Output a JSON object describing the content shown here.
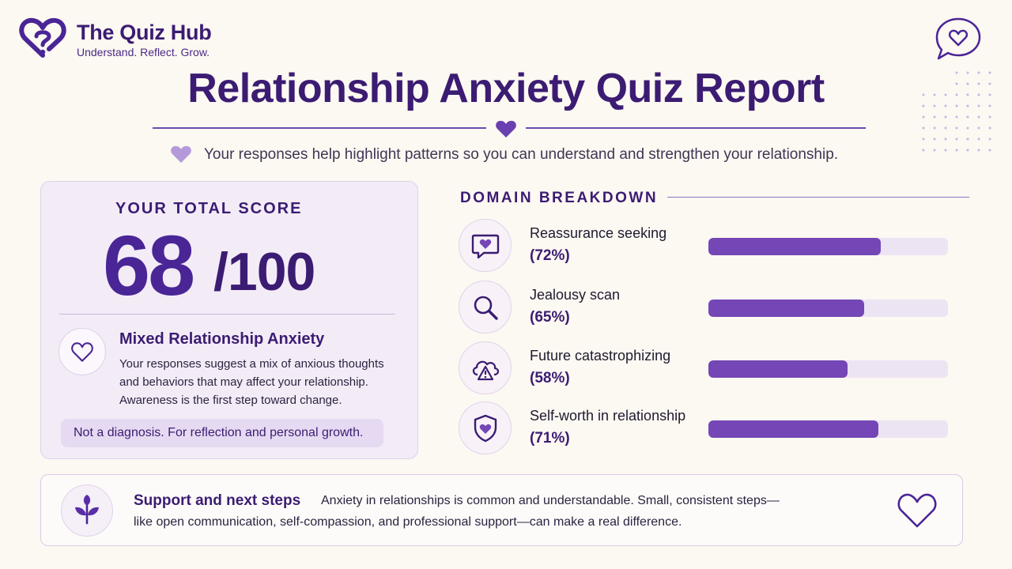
{
  "brand": {
    "name": "The Quiz Hub",
    "tagline": "Understand. Reflect. Grow."
  },
  "report": {
    "title": "Relationship Anxiety Quiz Report",
    "subtitle": "Your responses help highlight patterns so you can understand and strengthen your relationship."
  },
  "score": {
    "label": "YOUR TOTAL SCORE",
    "value": "68",
    "max": "/100",
    "result_title": "Mixed Relationship Anxiety",
    "result_description": "Your responses suggest a mix of anxious thoughts and behaviors that may affect your relationship. Awareness is the first step toward change.",
    "disclaimer": "Not a diagnosis. For reflection and personal growth."
  },
  "domains": {
    "heading": "DOMAIN BREAKDOWN",
    "items": [
      {
        "name": "Reassurance seeking",
        "percent_label": "(72%)",
        "percent": 72,
        "icon": "chat-heart-icon"
      },
      {
        "name": "Jealousy scan",
        "percent_label": "(65%)",
        "percent": 65,
        "icon": "magnifier-icon"
      },
      {
        "name": "Future catastrophizing",
        "percent_label": "(58%)",
        "percent": 58,
        "icon": "storm-cloud-icon"
      },
      {
        "name": "Self-worth in relationship",
        "percent_label": "(71%)",
        "percent": 71,
        "icon": "shield-heart-icon"
      }
    ]
  },
  "support": {
    "heading": "Support and next steps",
    "line1": "Anxiety in relationships is common and understandable. Small, consistent steps—",
    "line2": "like open communication, self-compassion, and professional support—can make a real difference."
  },
  "colors": {
    "brand_purple": "#3b1c72",
    "accent_purple": "#7446b6",
    "background": "#fcf8f2"
  }
}
